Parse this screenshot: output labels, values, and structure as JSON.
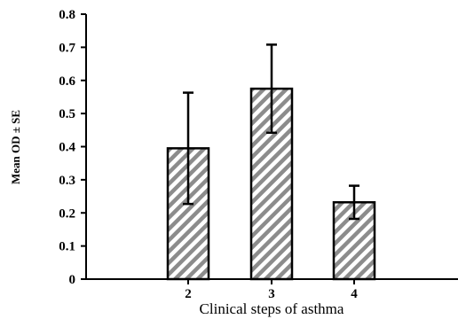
{
  "chart_data": {
    "type": "bar",
    "categories": [
      "2",
      "3",
      "4"
    ],
    "values": [
      0.395,
      0.575,
      0.232
    ],
    "error": [
      0.168,
      0.133,
      0.05
    ],
    "xlabel": "Clinical steps of asthma",
    "ylabel": "Mean OD ± SE",
    "ylim": [
      0,
      0.8
    ],
    "yticks": [
      "0",
      "0.1",
      "0.2",
      "0.3",
      "0.4",
      "0.5",
      "0.6",
      "0.7",
      "0.8"
    ],
    "bar_fill": "hatched",
    "colors": {
      "bar_hatch": "#8c8c8c",
      "bar_outline": "#000000",
      "axis": "#000000"
    },
    "grid": false,
    "legend": "none"
  }
}
